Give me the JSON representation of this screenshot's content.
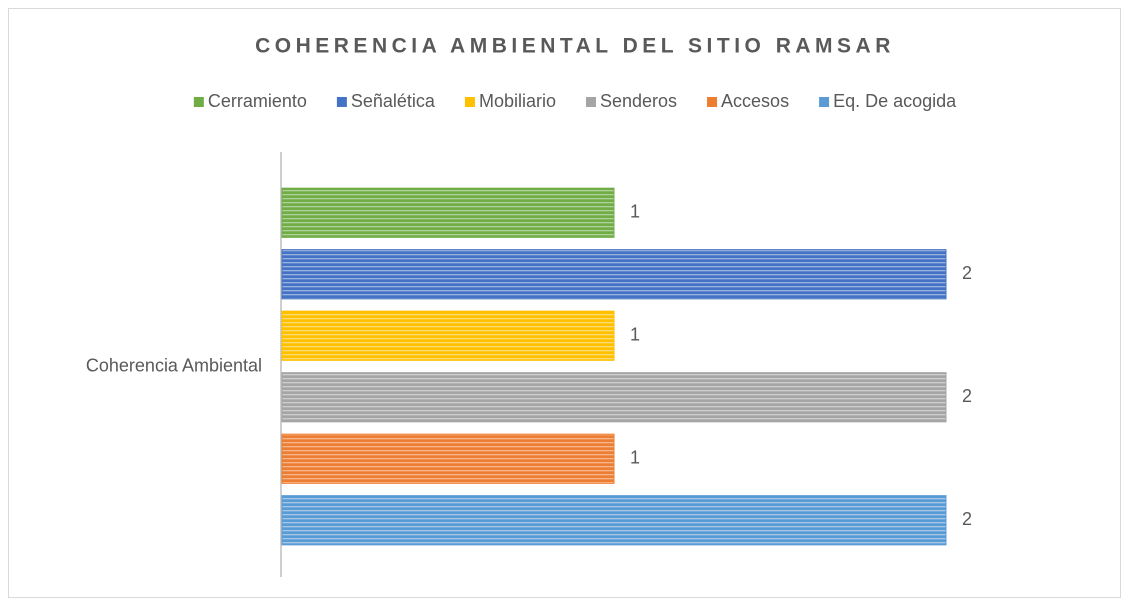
{
  "chart_data": {
    "type": "bar",
    "orientation": "horizontal",
    "title": "COHERENCIA  AMBIENTAL  DEL SITIO RAMSAR",
    "categories": [
      "Coherencia Ambiental"
    ],
    "series": [
      {
        "name": "Cerramiento",
        "color": "#70ad47",
        "values": [
          1
        ]
      },
      {
        "name": "Señalética",
        "color": "#4472c4",
        "values": [
          2
        ]
      },
      {
        "name": "Mobiliario",
        "color": "#ffc000",
        "values": [
          1
        ]
      },
      {
        "name": "Senderos",
        "color": "#a5a5a5",
        "values": [
          2
        ]
      },
      {
        "name": "Accesos",
        "color": "#ed7d31",
        "values": [
          1
        ]
      },
      {
        "name": "Eq. De acogida",
        "color": "#5b9bd5",
        "values": [
          2
        ]
      }
    ],
    "xlim": [
      0,
      2.5
    ],
    "legend": "top",
    "pattern": "horizontal-stripes"
  }
}
